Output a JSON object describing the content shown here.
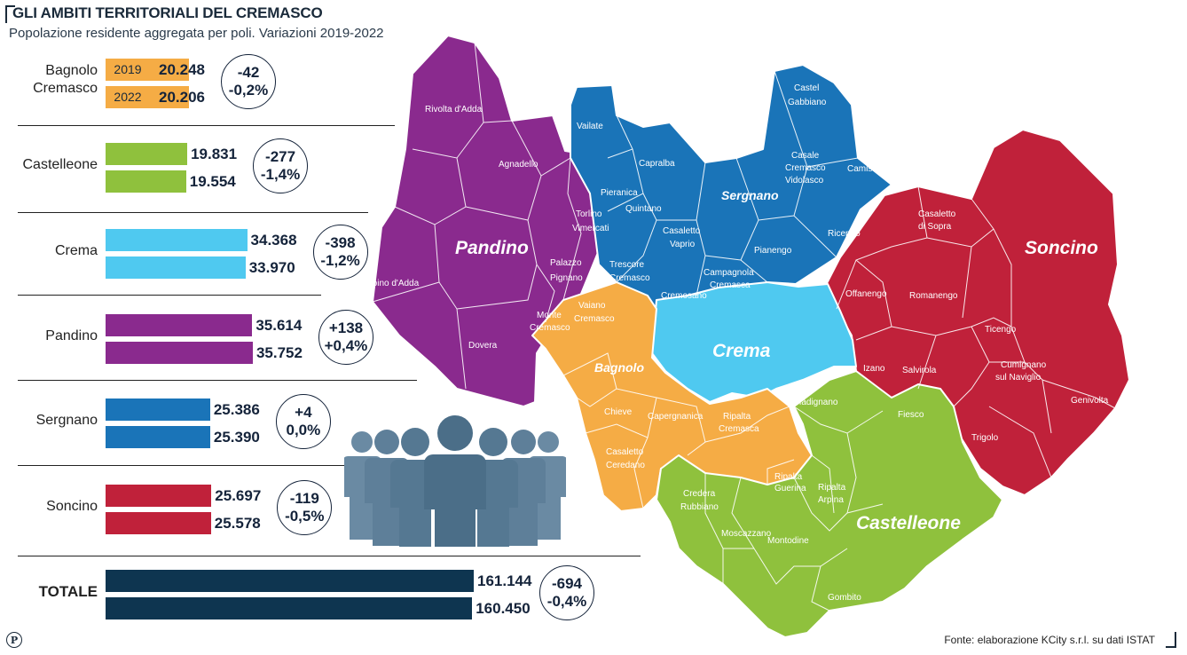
{
  "header": {
    "title": "GLI AMBITI TERRITORIALI DEL CREMASCO",
    "subtitle": "Popolazione residente aggregata per poli. Variazioni 2019-2022"
  },
  "source": "Fonte: elaborazione KCity s.r.l. su dati ISTAT",
  "logo_letter": "P",
  "chart_data": {
    "type": "bar",
    "orientation": "horizontal",
    "years": [
      "2019",
      "2022"
    ],
    "categories": [
      "Bagnolo Cremasco",
      "Castelleone",
      "Crema",
      "Pandino",
      "Sergnano",
      "Soncino",
      "TOTALE"
    ],
    "series": [
      {
        "name": "2019",
        "values": [
          20248,
          19831,
          34368,
          35614,
          25386,
          25697,
          161144
        ]
      },
      {
        "name": "2022",
        "values": [
          20206,
          19554,
          33970,
          35752,
          25390,
          25578,
          160450
        ]
      }
    ],
    "value_labels_2019": [
      "20.248",
      "19.831",
      "34.368",
      "35.614",
      "25.386",
      "25.697",
      "161.144"
    ],
    "value_labels_2022": [
      "20.206",
      "19.554",
      "33.970",
      "35.752",
      "25.390",
      "25.578",
      "160.450"
    ],
    "change_abs": [
      "-42",
      "-277",
      "-398",
      "+138",
      "+4",
      "-119",
      "-694"
    ],
    "change_pct": [
      "-0,2%",
      "-1,4%",
      "-1,2%",
      "+0,4%",
      "0,0%",
      "-0,5%",
      "-0,4%"
    ],
    "colors": [
      "#f5ac45",
      "#8fc13d",
      "#4fc9f0",
      "#8a2a8e",
      "#1a74b8",
      "#c0213a",
      "#0e3550"
    ]
  },
  "map": {
    "areas": [
      {
        "name": "Pandino",
        "color": "#8a2a8e"
      },
      {
        "name": "Sergnano",
        "color": "#1a74b8"
      },
      {
        "name": "Soncino",
        "color": "#c0213a"
      },
      {
        "name": "Crema",
        "color": "#4fc9f0"
      },
      {
        "name": "Bagnolo",
        "color": "#f5ac45"
      },
      {
        "name": "Castelleone",
        "color": "#8fc13d"
      }
    ],
    "municipalities": {
      "rivolta": "Rivolta d'Adda",
      "agnadello": "Agnadello",
      "spino": "Spino d'Adda",
      "dovera": "Dovera",
      "palazzo": "Palazzo",
      "pignano": "Pignano",
      "torlino": "Torlino",
      "vimercati": "Vimercati",
      "vailate": "Vailate",
      "capralba": "Capralba",
      "pieranica": "Pieranica",
      "quintano": "Quintano",
      "casaletto_vaprio_1": "Casaletto",
      "casaletto_vaprio_2": "Vaprio",
      "trescore_1": "Trescore",
      "trescore_2": "Cremasco",
      "cremosano": "Cremosano",
      "campagnola_1": "Campagnola",
      "campagnola_2": "Cremasca",
      "pianengo": "Pianengo",
      "castel_gabbiano_1": "Castel",
      "castel_gabbiano_2": "Gabbiano",
      "casale_1": "Casale",
      "casale_2": "Cremasco",
      "casale_3": "Vidolasco",
      "camisano": "Camisano",
      "ricengo": "Ricengo",
      "casaletto_sopra_1": "Casaletto",
      "casaletto_sopra_2": "di Sopra",
      "offanengo": "Offanengo",
      "romanengo": "Romanengo",
      "ticengo": "Ticengo",
      "izano": "Izano",
      "salvirola": "Salvirola",
      "cumignano_1": "Cumignano",
      "cumignano_2": "sul Naviglio",
      "genivolta": "Genivolta",
      "trigolo": "Trigolo",
      "monte_1": "Monte",
      "monte_2": "Cremasco",
      "vaiano_1": "Vaiano",
      "vaiano_2": "Cremasco",
      "chieve": "Chieve",
      "capergnanica": "Capergnanica",
      "ripalta_cremasca_1": "Ripalta",
      "ripalta_cremasca_2": "Cremasca",
      "casaletto_ceredano_1": "Casaletto",
      "casaletto_ceredano_2": "Ceredano",
      "ripalta_guerina_1": "Ripalta",
      "ripalta_guerina_2": "Guerina",
      "madignano": "Madignano",
      "fiesco": "Fiesco",
      "credera_1": "Credera",
      "credera_2": "Rubbiano",
      "ripalta_arpina_1": "Ripalta",
      "ripalta_arpina_2": "Arpina",
      "moscazzano": "Moscazzano",
      "montodine": "Montodine",
      "gombito": "Gombito"
    }
  }
}
